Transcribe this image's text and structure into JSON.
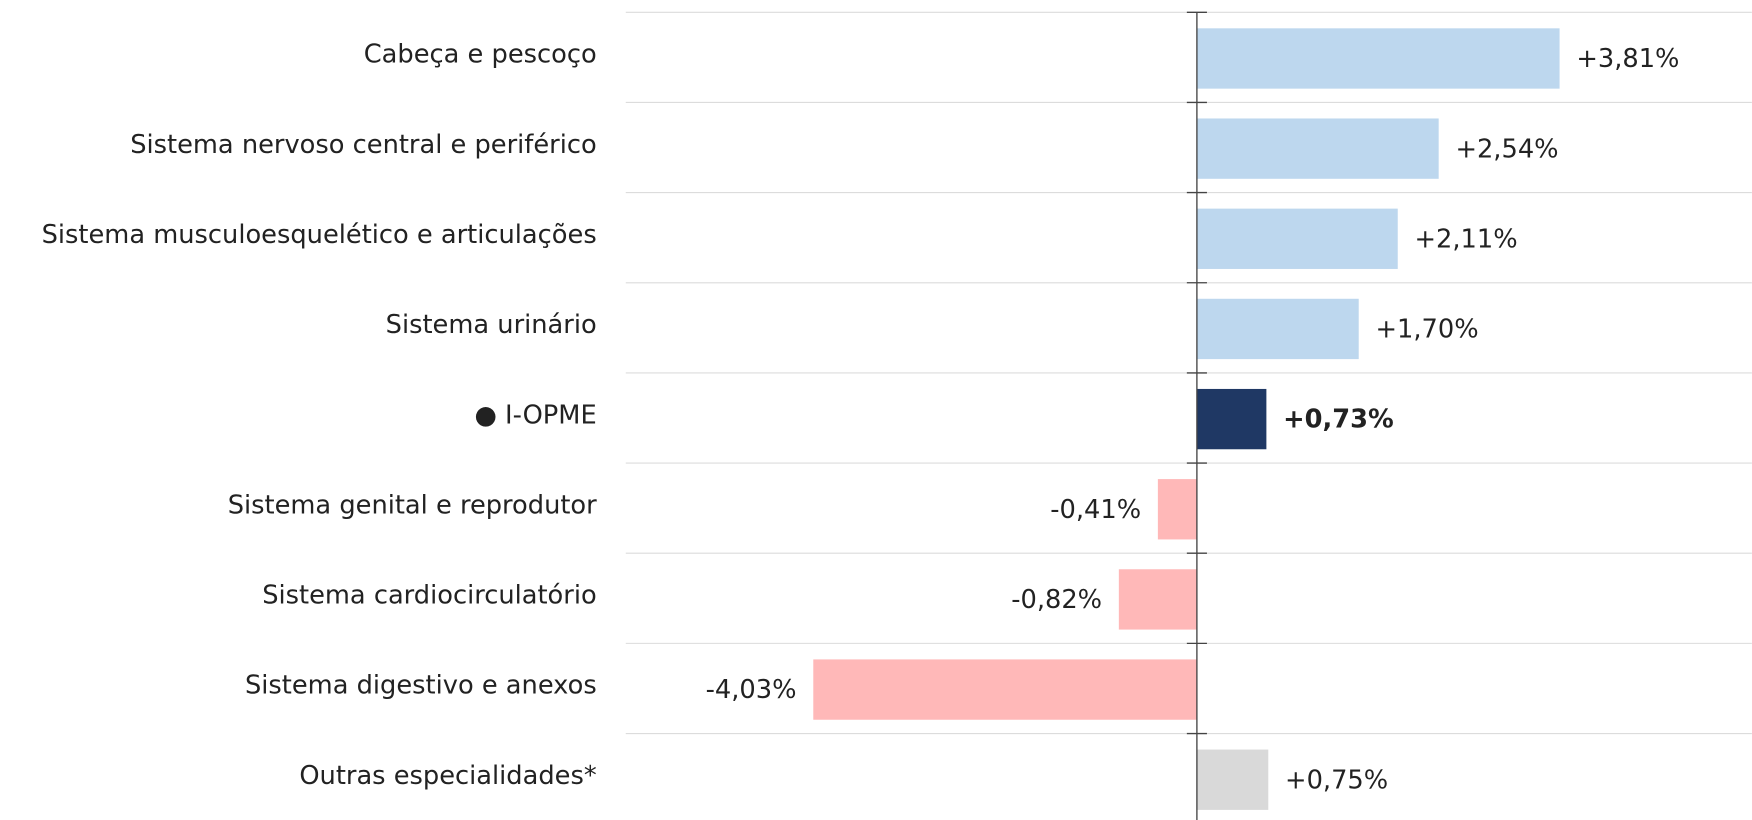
{
  "chart_data": {
    "type": "barh",
    "categories": [
      "Cabeça e pescoço",
      "Sistema nervoso central e periférico",
      "Sistema musculoesquelético e articulações",
      "Sistema urinário",
      "● I-OPME",
      "Sistema genital e reprodutor",
      "Sistema cardiocirculatório",
      "Sistema digestivo e anexos",
      "Outras especialidades*"
    ],
    "values": [
      3.81,
      2.54,
      2.11,
      1.7,
      0.73,
      -0.41,
      -0.82,
      -4.03,
      0.75
    ],
    "value_labels": [
      "+3,81%",
      "+2,54%",
      "+2,11%",
      "+1,70%",
      "+0,73%",
      "-0,41%",
      "-0,82%",
      "-4,03%",
      "+0,75%"
    ],
    "colors": [
      "#bdd7ee",
      "#bdd7ee",
      "#bdd7ee",
      "#bdd7ee",
      "#1f3864",
      "#ffb8b8",
      "#ffb8b8",
      "#ffb8b8",
      "#d9d9d9"
    ],
    "bold_index": 4,
    "xlim": [
      -6,
      5.83
    ]
  }
}
